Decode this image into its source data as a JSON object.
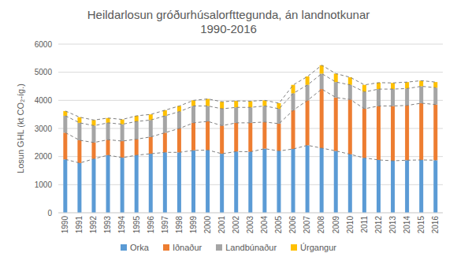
{
  "chart_data": {
    "type": "bar",
    "title": [
      "Heildarlosun gróðurhúsalorfttegunda, án landnotkunar",
      "1990-2016"
    ],
    "y_label": "Losun GHL (kt CO₂-íg.)",
    "categories": [
      "1990",
      "1991",
      "1992",
      "1993",
      "1994",
      "1995",
      "1996",
      "1997",
      "1998",
      "1999",
      "2000",
      "2001",
      "2002",
      "2003",
      "2004",
      "2005",
      "2006",
      "2007",
      "2008",
      "2009",
      "2010",
      "2011",
      "2012",
      "2013",
      "2014",
      "2015",
      "2016"
    ],
    "series": [
      {
        "name": "Orka",
        "color": "#5b9bd5",
        "values": [
          1900,
          1770,
          1920,
          2050,
          1960,
          2050,
          2100,
          2150,
          2150,
          2220,
          2230,
          2100,
          2180,
          2170,
          2280,
          2200,
          2270,
          2400,
          2300,
          2200,
          2080,
          1950,
          1880,
          1850,
          1870,
          1880,
          1870
        ]
      },
      {
        "name": "Iðnaður",
        "color": "#ed7d31",
        "values": [
          950,
          810,
          580,
          550,
          590,
          570,
          600,
          700,
          850,
          980,
          1020,
          1000,
          1020,
          1030,
          950,
          970,
          1380,
          1600,
          2100,
          1900,
          1950,
          1750,
          1920,
          1950,
          1950,
          2020,
          1980
        ]
      },
      {
        "name": "Landbúnaður",
        "color": "#a5a5a5",
        "values": [
          600,
          620,
          600,
          600,
          600,
          630,
          600,
          600,
          600,
          600,
          550,
          600,
          550,
          550,
          570,
          530,
          600,
          550,
          550,
          550,
          520,
          600,
          600,
          600,
          600,
          600,
          600
        ]
      },
      {
        "name": "Úrgangur",
        "color": "#ffc000",
        "values": [
          170,
          200,
          200,
          170,
          170,
          200,
          200,
          200,
          200,
          200,
          250,
          250,
          230,
          220,
          200,
          200,
          300,
          300,
          300,
          300,
          270,
          250,
          230,
          220,
          230,
          200,
          200
        ]
      }
    ],
    "stacked": true,
    "ylim": [
      0,
      6000
    ],
    "yticks": [
      0,
      1000,
      2000,
      3000,
      4000,
      5000,
      6000
    ],
    "grid": true,
    "legend": "bottom"
  }
}
